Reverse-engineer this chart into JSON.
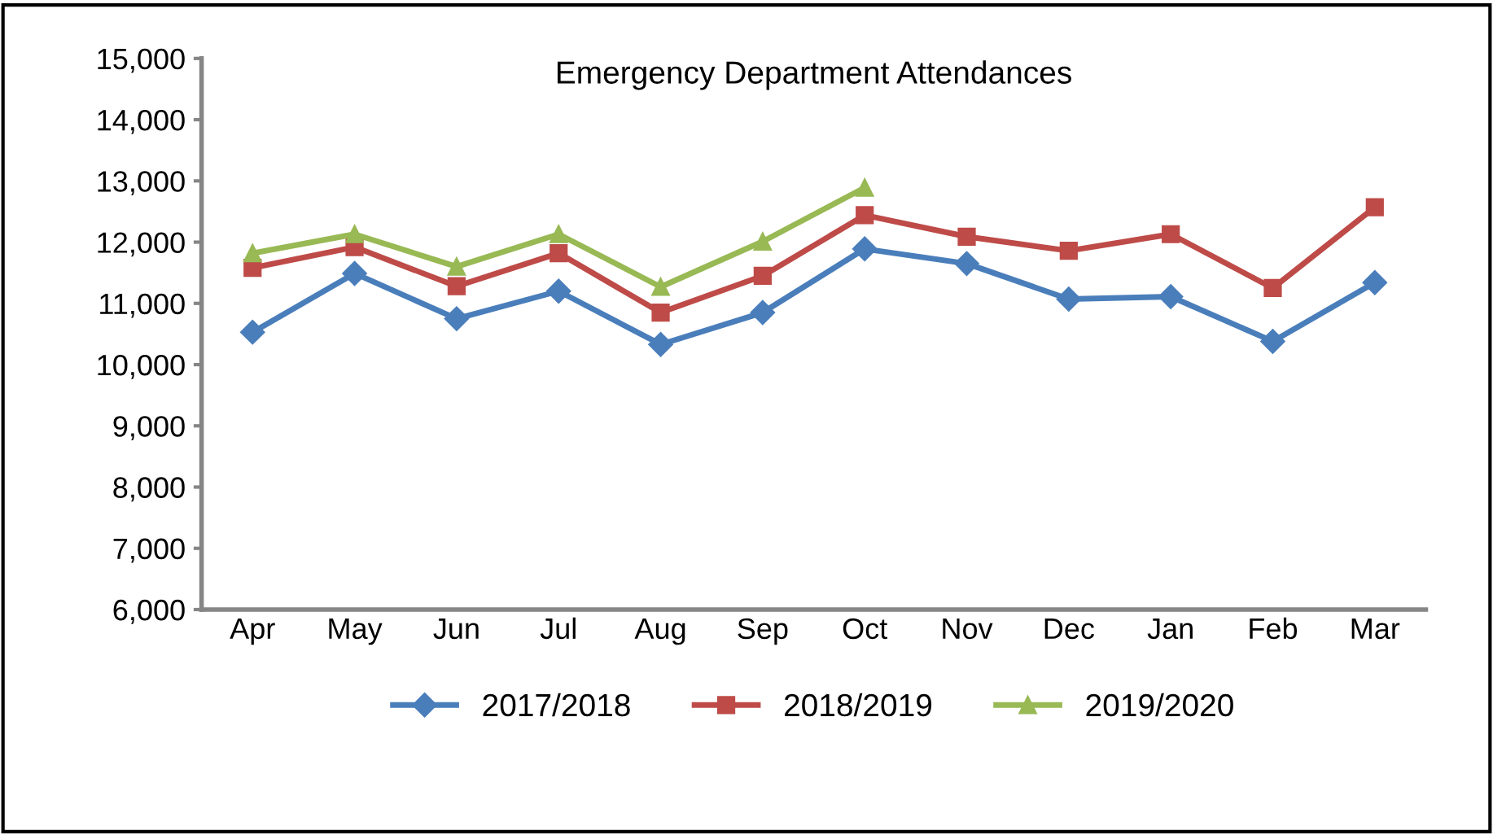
{
  "chart_data": {
    "type": "line",
    "title": "Emergency Department Attendances",
    "categories": [
      "Apr",
      "May",
      "Jun",
      "Jul",
      "Aug",
      "Sep",
      "Oct",
      "Nov",
      "Dec",
      "Jan",
      "Feb",
      "Mar"
    ],
    "series": [
      {
        "name": "2017/2018",
        "color": "#4a7ebb",
        "marker": "diamond",
        "values": [
          10530,
          11490,
          10750,
          11200,
          10330,
          10850,
          11890,
          11650,
          11070,
          11110,
          10380,
          11340
        ]
      },
      {
        "name": "2018/2019",
        "color": "#be4b48",
        "marker": "square",
        "values": [
          11580,
          11920,
          11280,
          11820,
          10850,
          11450,
          12440,
          12090,
          11860,
          12130,
          11250,
          12570
        ]
      },
      {
        "name": "2019/2020",
        "color": "#98b954",
        "marker": "triangle",
        "values": [
          11820,
          12130,
          11600,
          12130,
          11270,
          12010,
          12890,
          null,
          null,
          null,
          null,
          null
        ]
      }
    ],
    "ylim": [
      6000,
      15000
    ],
    "yticks": [
      {
        "value": 6000,
        "label": "6,000"
      },
      {
        "value": 7000,
        "label": "7,000"
      },
      {
        "value": 8000,
        "label": "8,000"
      },
      {
        "value": 9000,
        "label": "9,000"
      },
      {
        "value": 10000,
        "label": "10,000"
      },
      {
        "value": 11000,
        "label": "11,000"
      },
      {
        "value": 12000,
        "label": "12,000"
      },
      {
        "value": 13000,
        "label": "13,000"
      },
      {
        "value": 14000,
        "label": "14,000"
      },
      {
        "value": 15000,
        "label": "15,000"
      }
    ],
    "grid": false,
    "legend": "bottom",
    "line_style": "solid"
  }
}
